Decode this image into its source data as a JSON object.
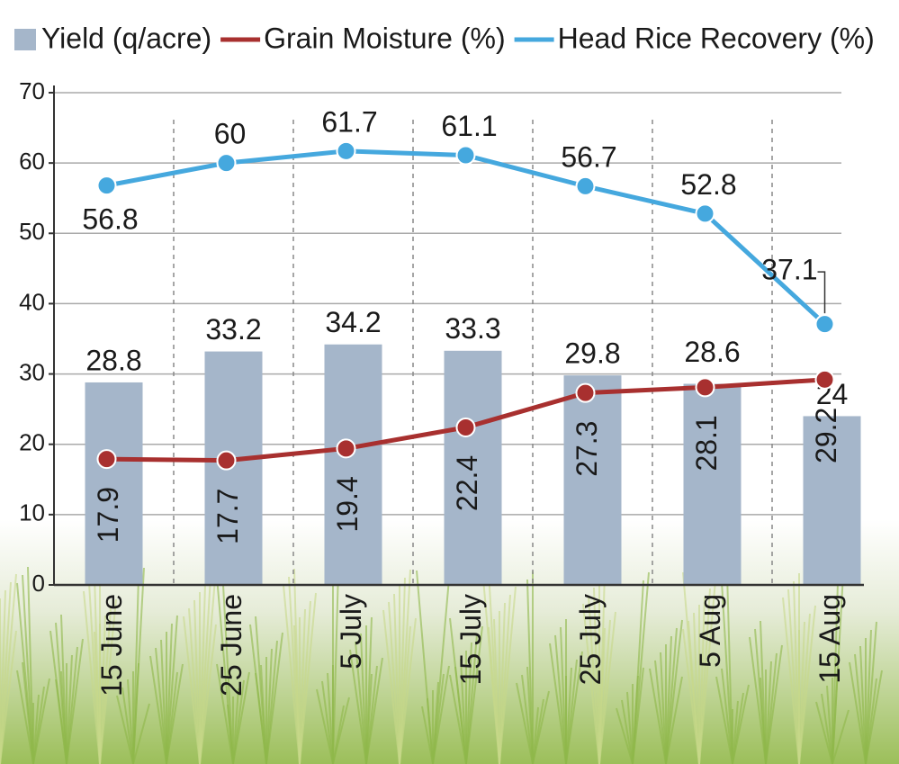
{
  "chart_data": {
    "type": "bar",
    "categories": [
      "15 June",
      "25 June",
      "5 July",
      "15 July",
      "25 July",
      "5 Aug",
      "15 Aug"
    ],
    "series": [
      {
        "name": "Yield (q/acre)",
        "type": "bar",
        "color": "#a5b6ca",
        "values": [
          28.8,
          33.2,
          34.2,
          33.3,
          29.8,
          28.6,
          24
        ]
      },
      {
        "name": "Grain Moisture (%)",
        "type": "line",
        "color": "#a8302f",
        "values": [
          17.9,
          17.7,
          19.4,
          22.4,
          27.3,
          28.1,
          29.2
        ]
      },
      {
        "name": "Head Rice Recovery (%)",
        "type": "line",
        "color": "#45a8de",
        "values": [
          56.8,
          60,
          61.7,
          61.1,
          56.7,
          52.8,
          37.1
        ]
      }
    ],
    "ylim": [
      0,
      70
    ],
    "yticks": [
      0,
      10,
      20,
      30,
      40,
      50,
      60,
      70
    ],
    "grid": true,
    "legend": "top"
  }
}
